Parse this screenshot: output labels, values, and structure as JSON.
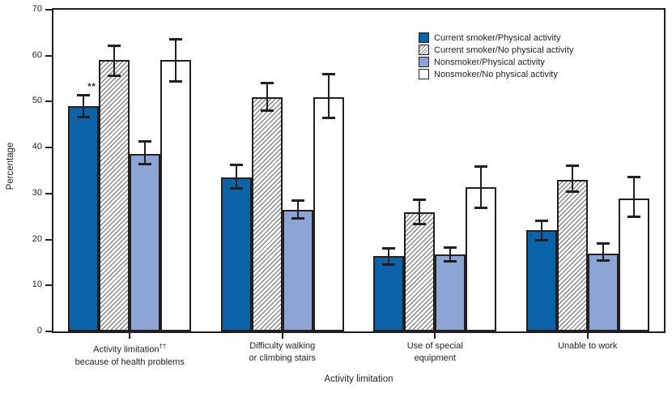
{
  "chart_data": {
    "type": "bar",
    "title": "",
    "xlabel": "Activity limitation",
    "ylabel": "Percentage",
    "ylim": [
      0,
      70
    ],
    "yticks": [
      0,
      10,
      20,
      30,
      40,
      50,
      60,
      70
    ],
    "grid": false,
    "legend_position": "top-right",
    "error_bars": true,
    "categories": [
      {
        "lines": [
          "Activity limitation††",
          "because of health problems"
        ]
      },
      {
        "lines": [
          "Difficulty walking",
          "or climbing stairs"
        ]
      },
      {
        "lines": [
          "Use of special",
          "equipment"
        ]
      },
      {
        "lines": [
          "Unable to work"
        ]
      }
    ],
    "series": [
      {
        "name": "Current smoker/Physical activity",
        "fill": "#0d63a8",
        "hatch": false,
        "points": [
          {
            "v": 49.0,
            "lo": 46.5,
            "hi": 51.5
          },
          {
            "v": 33.5,
            "lo": 31.0,
            "hi": 36.3
          },
          {
            "v": 16.4,
            "lo": 14.5,
            "hi": 18.2
          },
          {
            "v": 22.0,
            "lo": 19.8,
            "hi": 24.1
          }
        ]
      },
      {
        "name": "Current smoker/No physical activity",
        "fill": "#ffffff",
        "hatch": true,
        "points": [
          {
            "v": 59.0,
            "lo": 55.5,
            "hi": 62.2
          },
          {
            "v": 51.0,
            "lo": 48.0,
            "hi": 54.2
          },
          {
            "v": 26.0,
            "lo": 23.3,
            "hi": 28.7
          },
          {
            "v": 33.0,
            "lo": 30.3,
            "hi": 36.2
          }
        ]
      },
      {
        "name": "Nonsmoker/Physical activity",
        "fill": "#8ca5d5",
        "hatch": false,
        "points": [
          {
            "v": 38.6,
            "lo": 36.4,
            "hi": 41.5
          },
          {
            "v": 26.5,
            "lo": 24.5,
            "hi": 28.6
          },
          {
            "v": 16.8,
            "lo": 15.1,
            "hi": 18.4
          },
          {
            "v": 17.0,
            "lo": 15.3,
            "hi": 19.2
          }
        ]
      },
      {
        "name": "Nonsmoker/No physical activity",
        "fill": "#ffffff",
        "hatch": false,
        "points": [
          {
            "v": 59.0,
            "lo": 54.3,
            "hi": 63.7
          },
          {
            "v": 51.0,
            "lo": 46.4,
            "hi": 56.1
          },
          {
            "v": 31.3,
            "lo": 26.8,
            "hi": 36.0
          },
          {
            "v": 29.0,
            "lo": 24.8,
            "hi": 33.6
          }
        ]
      }
    ],
    "annotations": [
      {
        "text": "**",
        "category_index": 0,
        "series_index": 0
      }
    ],
    "colors": {
      "axis": "#231f20",
      "dark_blue": "#0d63a8",
      "light_blue": "#8ca5d5",
      "hatch_line": "#8a8a8a",
      "white": "#ffffff"
    }
  }
}
